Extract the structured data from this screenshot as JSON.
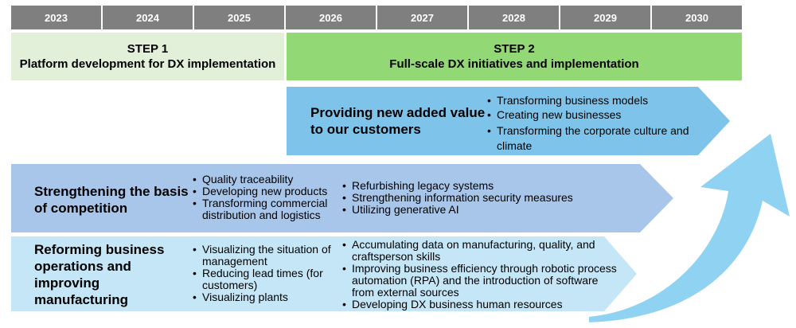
{
  "years": [
    "2023",
    "2024",
    "2025",
    "2026",
    "2027",
    "2028",
    "2029",
    "2030"
  ],
  "step1": {
    "label": "STEP 1",
    "subtitle": "Platform development for DX implementation"
  },
  "step2": {
    "label": "STEP 2",
    "subtitle": "Full-scale DX initiatives and implementation"
  },
  "colors": {
    "year_bar": "#7f7f7f",
    "step1": "#e2f0d9",
    "step2": "#92d875",
    "arrow_top": "#7ec4ea",
    "arrow_mid": "#a8c6e9",
    "arrow_low": "#c4e6f6",
    "curve_arrow": "#8fd2f2"
  },
  "arrows": {
    "customers": {
      "title": "Providing new added value to our customers",
      "items": [
        "Transforming business models",
        "Creating new businesses",
        "Transforming the corporate culture and climate"
      ]
    },
    "competition": {
      "title": "Strengthening the basis of competition",
      "left_items": [
        "Quality traceability",
        "Developing new products",
        "Transforming commercial distribution and logistics"
      ],
      "right_items": [
        "Refurbishing legacy systems",
        "Strengthening information security measures",
        "Utilizing generative AI"
      ]
    },
    "manufacturing": {
      "title": "Reforming business operations and improving manufacturing",
      "left_items": [
        "Visualizing the situation of management",
        "Reducing lead times (for customers)",
        "Visualizing plants"
      ],
      "right_items": [
        "Accumulating data on manufacturing, quality, and craftsperson skills",
        "Improving business efficiency through robotic process automation (RPA) and the introduction of software from external sources",
        "Developing DX business human resources"
      ]
    }
  }
}
